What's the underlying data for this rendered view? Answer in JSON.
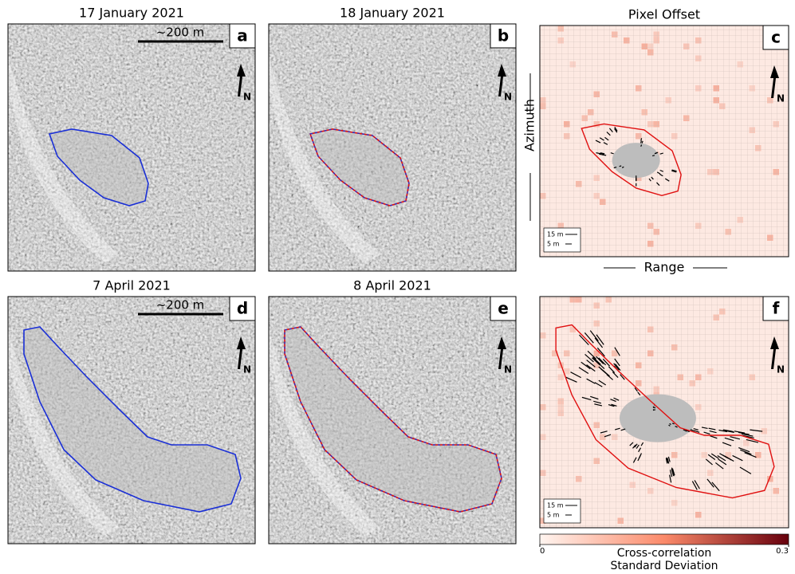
{
  "panels": [
    {
      "letter": "a",
      "title": "17 January 2021",
      "scale_bar": "~200 m",
      "north": "N"
    },
    {
      "letter": "b",
      "title": "18 January 2021",
      "north": "N"
    },
    {
      "letter": "c",
      "title": "Pixel Offset",
      "north": "N",
      "y_axis_label": "Azimuth",
      "x_axis_label": "Range",
      "legend": [
        "15 m",
        "5 m"
      ]
    },
    {
      "letter": "d",
      "title": "7 April 2021",
      "scale_bar": "~200 m",
      "north": "N"
    },
    {
      "letter": "e",
      "title": "8 April 2021",
      "north": "N"
    },
    {
      "letter": "f",
      "north": "N",
      "legend": [
        "15 m",
        "5 m"
      ]
    }
  ],
  "colorbar": {
    "range": [
      0,
      0.3
    ],
    "ticks": [
      0,
      0.3
    ],
    "label": [
      "Cross-correlation",
      "Standard Deviation"
    ]
  }
}
